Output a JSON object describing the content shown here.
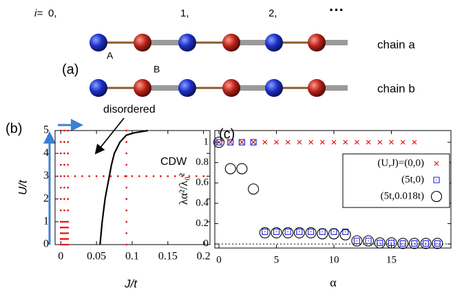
{
  "panel_a": {
    "label": "(a)",
    "index_prefix": "i=",
    "indices": [
      "0,",
      "1,",
      "2,"
    ],
    "ellipsis": "···",
    "site_labels": [
      "A",
      "B"
    ],
    "chains": [
      "chain a",
      "chain b"
    ]
  },
  "chart_data": [
    {
      "type": "line",
      "label": "(b)",
      "x_label": "J/t",
      "y_label": "U/t",
      "annotations": [
        "disordered",
        "CDW"
      ],
      "xlim": [
        -0.008,
        0.209
      ],
      "ylim": [
        0,
        5
      ],
      "xticks": [
        0,
        0.05,
        0.1,
        0.15,
        0.2
      ],
      "yticks": [
        0,
        1,
        2,
        3,
        4,
        5
      ],
      "series": [
        {
          "color": "#000000",
          "x": [
            0.055,
            0.058,
            0.062,
            0.068,
            0.071,
            0.075,
            0.083,
            0.092,
            0.103,
            0.122
          ],
          "values": [
            0,
            1,
            2,
            3,
            3.5,
            4,
            4.5,
            4.8,
            4.9,
            5
          ]
        },
        {
          "color": "#e00000",
          "marker": "dot",
          "x": [
            0.02,
            0.03,
            0.04,
            0.05,
            0.06,
            0.07,
            0.08,
            0.09,
            0.1,
            0.11,
            0.12,
            0.13,
            0.14,
            0.15,
            0.16,
            0.17,
            0.18,
            0.19,
            0.2,
            0.092,
            0.092,
            0.092,
            0.092,
            0.092,
            0.092,
            0.092,
            0.092,
            0.092,
            0.092,
            0.092,
            0,
            0,
            0,
            0,
            0,
            0,
            0,
            0,
            0,
            0,
            0,
            0.005,
            0.005,
            0.005,
            0.005,
            0.005,
            0.005,
            0.005,
            0.005,
            0.005,
            0.005,
            0.005,
            0.01,
            0.01,
            0.01,
            0.01,
            0.01,
            0.01,
            0.01,
            0.01,
            0.01,
            0.01,
            0.01,
            0.0025,
            0.0025,
            0.0025,
            0.0025,
            0.0025,
            0.0075,
            0.0075,
            0.0075,
            0.0075,
            0.0075,
            0,
            0,
            0.005,
            0.005,
            0.01,
            0.01
          ],
          "values": [
            3,
            3,
            3,
            3,
            3,
            3,
            3,
            3,
            3,
            3,
            3,
            3,
            3,
            3,
            3,
            3,
            3,
            3,
            3,
            0,
            0.5,
            1,
            1.5,
            2,
            2.5,
            3,
            3.5,
            4,
            4.5,
            5,
            0,
            0.5,
            1,
            1.5,
            2,
            2.5,
            3,
            3.5,
            4,
            4.5,
            5,
            0,
            0.5,
            1,
            1.5,
            2,
            2.5,
            3,
            3.5,
            4,
            4.5,
            5,
            0,
            0.5,
            1,
            1.5,
            2,
            2.5,
            3,
            3.5,
            4,
            4.5,
            5,
            0,
            0.25,
            0.5,
            0.75,
            1,
            0,
            0.25,
            0.5,
            0.75,
            1,
            0.25,
            0.75,
            0.25,
            0.75,
            0.25,
            0.75
          ]
        }
      ]
    },
    {
      "type": "scatter",
      "label": "(c)",
      "x_label": "α",
      "y_label": "λα²/λ₀²",
      "xlim": [
        -0.36,
        20.18
      ],
      "ylim": [
        -0.04,
        1.115
      ],
      "xticks": [
        0,
        5,
        10,
        15
      ],
      "yticks": [
        0,
        0.2,
        0.4,
        0.6,
        0.8,
        1
      ],
      "hline": 0,
      "legend": "right",
      "x": [
        0,
        1,
        2,
        3,
        4,
        5,
        6,
        7,
        8,
        9,
        10,
        11,
        12,
        13,
        14,
        15,
        16,
        17,
        18,
        19
      ],
      "series": [
        {
          "name": "(U,J)=(0,0)",
          "color": "#e00000",
          "marker": "x",
          "values": [
            1,
            1,
            1,
            1,
            1,
            1,
            1,
            1,
            1,
            1,
            1,
            1,
            1,
            1,
            1,
            1,
            1,
            1,
            null,
            null
          ]
        },
        {
          "name": "(5t,0)",
          "color": "#1a1adf",
          "marker": "square",
          "values": [
            1,
            1,
            1,
            1,
            0.12,
            0.12,
            0.12,
            0.12,
            0.12,
            0.12,
            0.12,
            0.12,
            0.03,
            0.03,
            0.01,
            0.01,
            0.005,
            0.005,
            0.005,
            0.005
          ]
        },
        {
          "name": "(5t,0.018t)",
          "color": "#000000",
          "marker": "circle",
          "values": [
            1,
            0.74,
            0.74,
            0.54,
            0.11,
            0.11,
            0.11,
            0.11,
            0.11,
            0.1,
            0.1,
            0.09,
            0.03,
            0.03,
            0.01,
            0.01,
            0.005,
            0.005,
            0.005,
            0.005
          ]
        }
      ]
    }
  ]
}
